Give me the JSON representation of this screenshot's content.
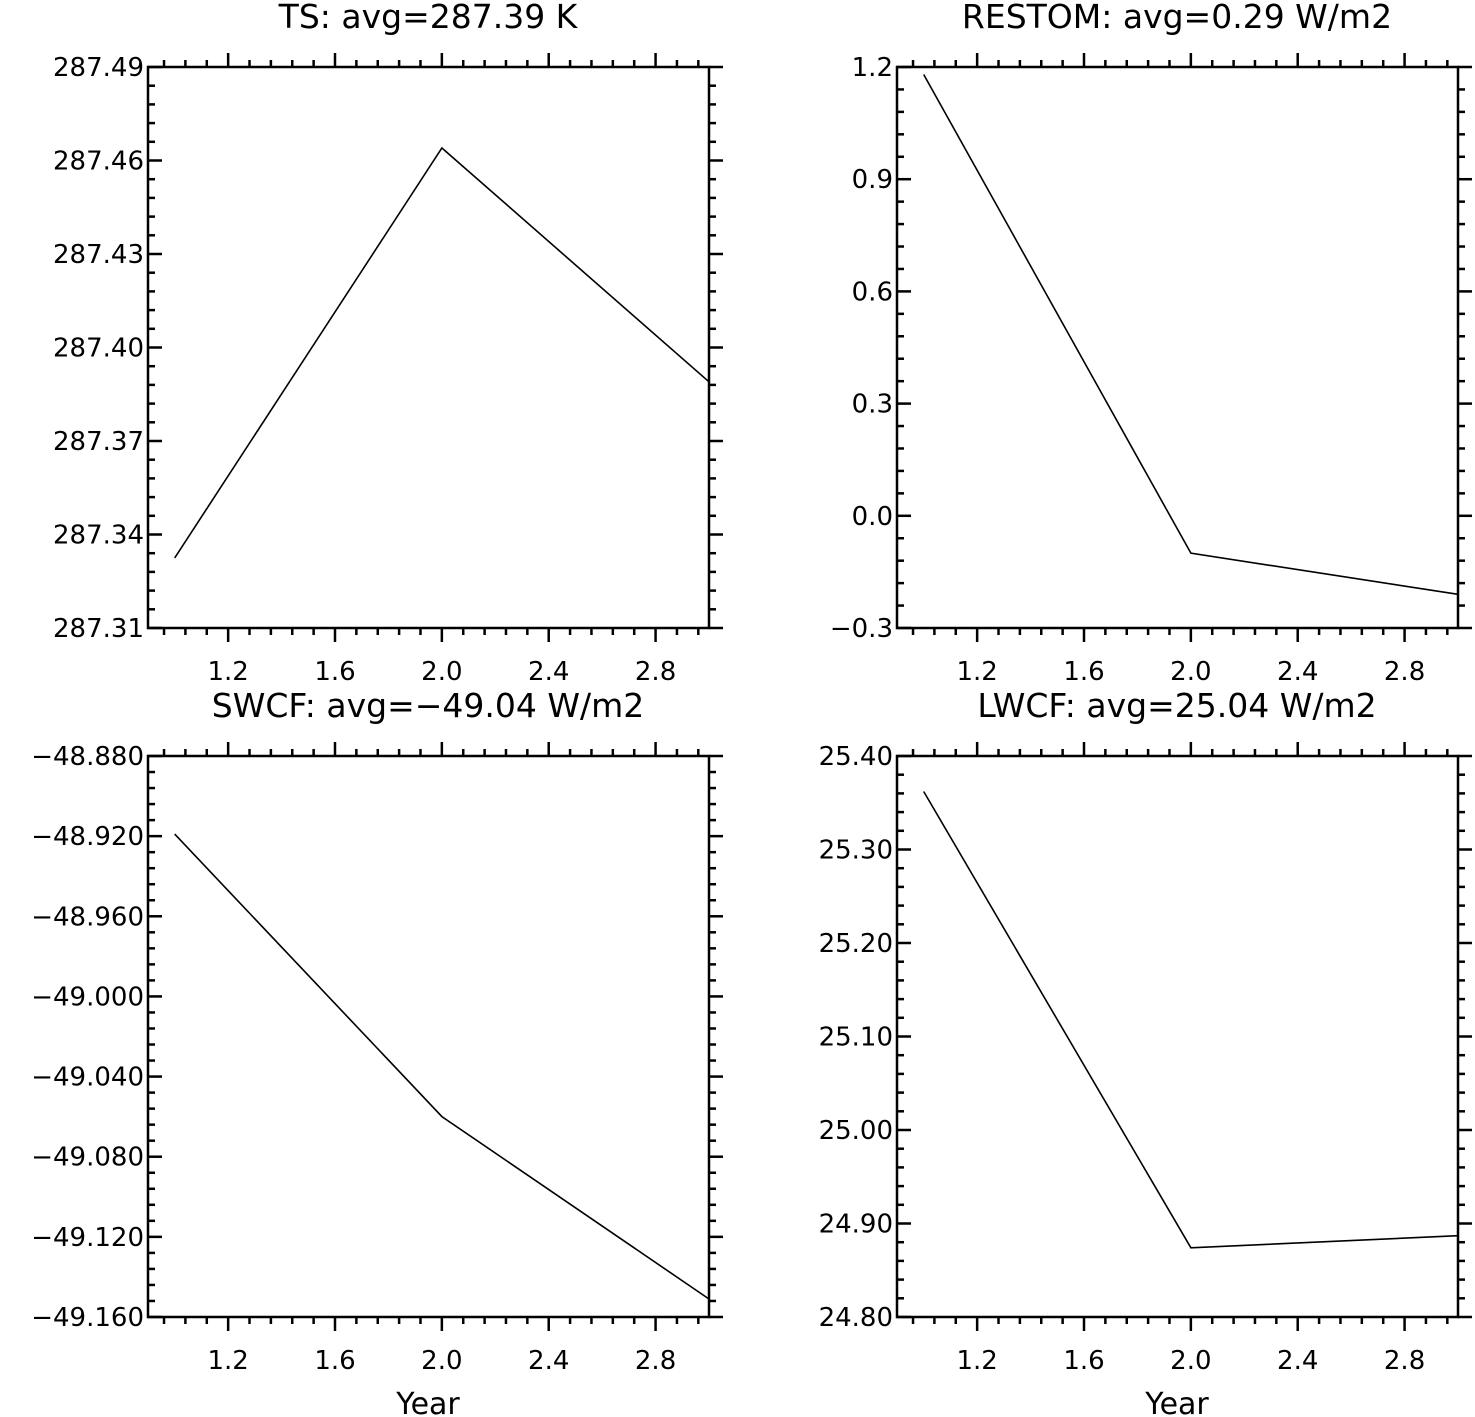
{
  "chart_data": [
    {
      "type": "line",
      "title": "TS: avg=287.39 K",
      "xlabel": "",
      "ylabel": "",
      "x": [
        1,
        2,
        3
      ],
      "values": [
        287.3325,
        287.464,
        287.389
      ],
      "xlim": [
        0.9,
        3.0
      ],
      "ylim": [
        287.31,
        287.49
      ],
      "xticks": [
        "1.2",
        "1.6",
        "2.0",
        "2.4",
        "2.8"
      ],
      "yticks": [
        "287.31",
        "287.34",
        "287.37",
        "287.40",
        "287.43",
        "287.46",
        "287.49"
      ],
      "grid": false
    },
    {
      "type": "line",
      "title": "RESTOM: avg=0.29 W/m2",
      "xlabel": "",
      "ylabel": "",
      "x": [
        1,
        2,
        3
      ],
      "values": [
        1.18,
        -0.1,
        -0.21
      ],
      "xlim": [
        0.9,
        3.0
      ],
      "ylim": [
        -0.3,
        1.2
      ],
      "xticks": [
        "1.2",
        "1.6",
        "2.0",
        "2.4",
        "2.8"
      ],
      "yticks": [
        "−0.3",
        "0.0",
        "0.3",
        "0.6",
        "0.9",
        "1.2"
      ],
      "grid": false
    },
    {
      "type": "line",
      "title": "SWCF: avg=−49.04 W/m2",
      "xlabel": "Year",
      "ylabel": "",
      "x": [
        1,
        2,
        3
      ],
      "values": [
        -48.919,
        -49.06,
        -49.151
      ],
      "xlim": [
        0.9,
        3.0
      ],
      "ylim": [
        -49.16,
        -48.88
      ],
      "xticks": [
        "1.2",
        "1.6",
        "2.0",
        "2.4",
        "2.8"
      ],
      "yticks": [
        "−49.160",
        "−49.120",
        "−49.080",
        "−49.040",
        "−49.000",
        "−48.960",
        "−48.920",
        "−48.880"
      ],
      "grid": false
    },
    {
      "type": "line",
      "title": "LWCF: avg=25.04 W/m2",
      "xlabel": "Year",
      "ylabel": "",
      "x": [
        1,
        2,
        3
      ],
      "values": [
        25.362,
        24.874,
        24.887
      ],
      "xlim": [
        0.9,
        3.0
      ],
      "ylim": [
        24.8,
        25.4
      ],
      "xticks": [
        "1.2",
        "1.6",
        "2.0",
        "2.4",
        "2.8"
      ],
      "yticks": [
        "24.80",
        "24.90",
        "25.00",
        "25.10",
        "25.20",
        "25.30",
        "25.40"
      ],
      "grid": false
    }
  ]
}
